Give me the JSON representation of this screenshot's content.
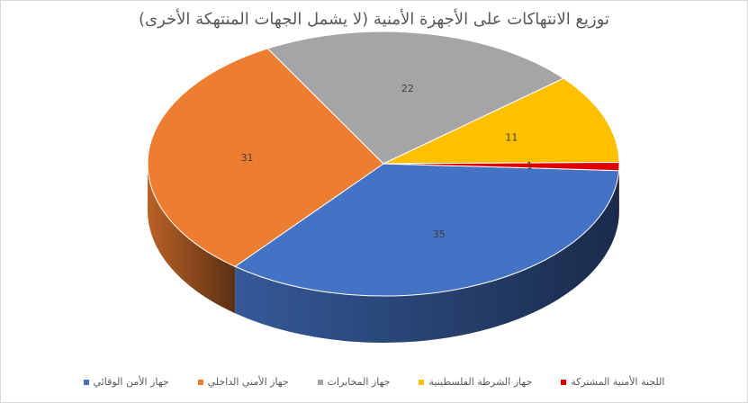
{
  "chart_data": {
    "type": "pie",
    "title": "توزيع الانتهاكات على الأجهزة الأمنية (لا يشمل الجهات المنتهكة الأخرى)",
    "slices": [
      {
        "name": "جهاز الأمن الوقائي",
        "value": 35,
        "color": "#4472C4"
      },
      {
        "name": "جهاز الأمني الداخلي",
        "value": 31,
        "color": "#ED7D31"
      },
      {
        "name": "جهاز المخابرات",
        "value": 22,
        "color": "#A5A5A5"
      },
      {
        "name": "جهاز الشرطة الفلسطينية",
        "value": 11,
        "color": "#FFC000"
      },
      {
        "name": "اللجنة الأمنية المشتركة",
        "value": 1,
        "color": "#E00000"
      }
    ],
    "legend_position": "bottom",
    "style": "3d"
  }
}
